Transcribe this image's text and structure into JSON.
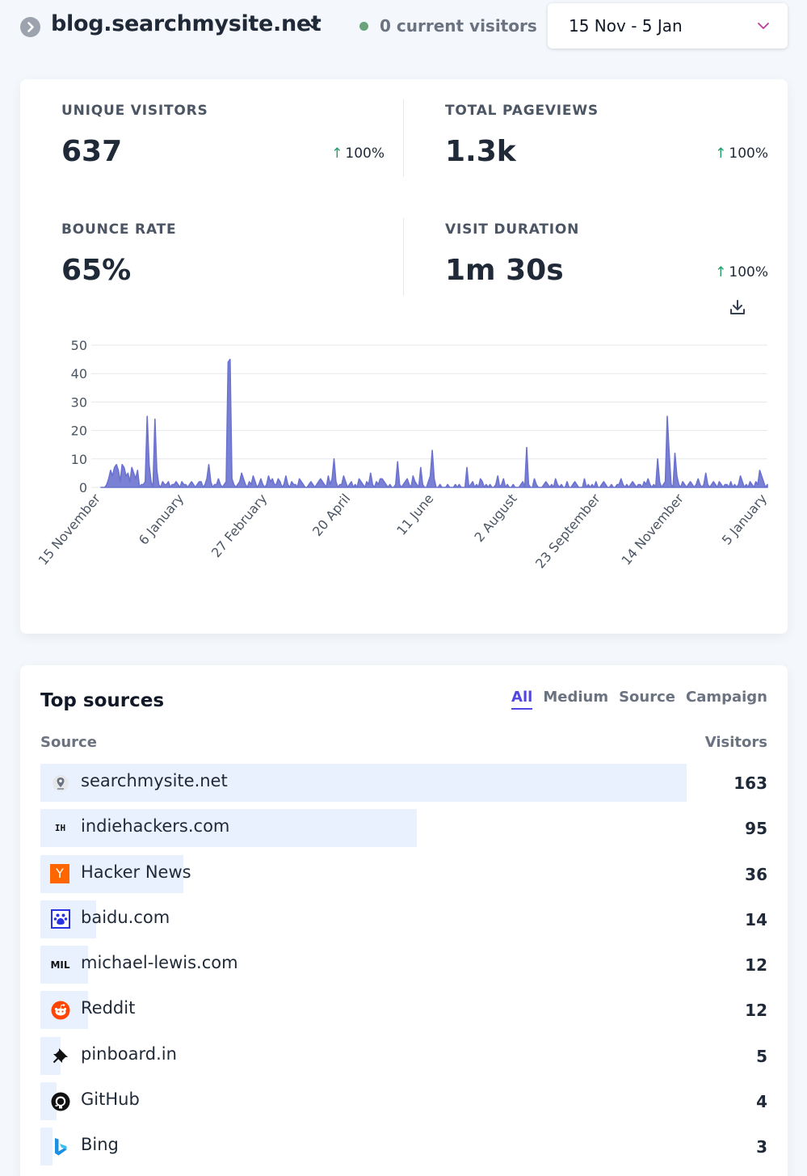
{
  "header": {
    "site_name": "blog.searchmysite.net",
    "current_visitors": "0 current visitors",
    "date_range": "15 Nov - 5 Jan"
  },
  "stats": [
    {
      "label": "UNIQUE VISITORS",
      "value": "637",
      "change": "100%"
    },
    {
      "label": "TOTAL PAGEVIEWS",
      "value": "1.3k",
      "change": "100%"
    },
    {
      "label": "BOUNCE RATE",
      "value": "65%",
      "change": ""
    },
    {
      "label": "VISIT DURATION",
      "value": "1m 30s",
      "change": "100%"
    }
  ],
  "chart_data": {
    "type": "area",
    "x_tick_labels": [
      "15 November",
      "6 January",
      "27 February",
      "20 April",
      "11 June",
      "2 August",
      "23 September",
      "14 November",
      "5 January"
    ],
    "y_ticks": [
      0,
      10,
      20,
      30,
      40,
      50
    ],
    "ylim": [
      0,
      50
    ],
    "grid": true,
    "color": "#6b72cf",
    "values": [
      0,
      0,
      0,
      1,
      3,
      6,
      4,
      7,
      8,
      6,
      2,
      8,
      7,
      4,
      5,
      2,
      7,
      5,
      3,
      6,
      0,
      1,
      1,
      2,
      25,
      8,
      2,
      0,
      24,
      6,
      1,
      0,
      2,
      1,
      1,
      2,
      0,
      1,
      1,
      2,
      1,
      0,
      2,
      1,
      1,
      0,
      1,
      2,
      1,
      0,
      1,
      2,
      2,
      0,
      1,
      3,
      8,
      2,
      0,
      1,
      1,
      3,
      1,
      0,
      1,
      2,
      44,
      45,
      3,
      1,
      0,
      1,
      2,
      5,
      3,
      1,
      0,
      2,
      1,
      4,
      2,
      0,
      1,
      3,
      1,
      0,
      1,
      4,
      2,
      3,
      1,
      1,
      3,
      2,
      0,
      1,
      4,
      1,
      0,
      2,
      1,
      1,
      0,
      3,
      2,
      1,
      0,
      0,
      1,
      2,
      1,
      0,
      1,
      2,
      3,
      2,
      1,
      0,
      4,
      1,
      3,
      10,
      2,
      0,
      1,
      1,
      4,
      2,
      0,
      1,
      2,
      0,
      1,
      0,
      3,
      2,
      1,
      0,
      2,
      1,
      5,
      1,
      0,
      2,
      1,
      3,
      3,
      2,
      1,
      0,
      1,
      0,
      0,
      1,
      9,
      1,
      0,
      1,
      2,
      3,
      1,
      0,
      4,
      2,
      1,
      0,
      7,
      1,
      0,
      0,
      2,
      4,
      13,
      3,
      0,
      0,
      1,
      0,
      0,
      0,
      1,
      0,
      0,
      0,
      1,
      0,
      1,
      0,
      0,
      0,
      7,
      0,
      1,
      2,
      0,
      1,
      0,
      3,
      2,
      0,
      1,
      0,
      1,
      0,
      0,
      1,
      4,
      0,
      1,
      3,
      0,
      1,
      0,
      0,
      1,
      0,
      0,
      0,
      1,
      2,
      0,
      14,
      1,
      0,
      0,
      3,
      1,
      0,
      0,
      0,
      1,
      2,
      1,
      0,
      1,
      0,
      3,
      1,
      0,
      1,
      0,
      0,
      2,
      0,
      0,
      1,
      2,
      1,
      0,
      0,
      0,
      3,
      0,
      1,
      0,
      1,
      0,
      2,
      0,
      0,
      1,
      2,
      1,
      0,
      0,
      1,
      0,
      0,
      1,
      1,
      3,
      1,
      0,
      1,
      0,
      1,
      2,
      1,
      0,
      1,
      1,
      0,
      2,
      1,
      3,
      1,
      0,
      1,
      0,
      10,
      2,
      0,
      1,
      2,
      25,
      12,
      1,
      0,
      12,
      4,
      1,
      0,
      2,
      1,
      0,
      1,
      2,
      1,
      0,
      1,
      3,
      1,
      0,
      1,
      5,
      1,
      0,
      1,
      2,
      1,
      0,
      2,
      1,
      0,
      1,
      1,
      0,
      2,
      0,
      1,
      0,
      1,
      4,
      2,
      0,
      1,
      0,
      2,
      1,
      0,
      2,
      1,
      6,
      4,
      2,
      0,
      1
    ]
  },
  "sources": {
    "title": "Top sources",
    "tabs": [
      "All",
      "Medium",
      "Source",
      "Campaign"
    ],
    "col_source": "Source",
    "col_visitors": "Visitors",
    "max": 163,
    "rows": [
      {
        "name": "searchmysite.net",
        "visitors": "163",
        "count": 163,
        "icon": "searchmysite-icon"
      },
      {
        "name": "indiehackers.com",
        "visitors": "95",
        "count": 95,
        "icon": "indiehackers-icon",
        "icon_text": "IH"
      },
      {
        "name": "Hacker News",
        "visitors": "36",
        "count": 36,
        "icon": "hacker-news-icon",
        "icon_text": "Y"
      },
      {
        "name": "baidu.com",
        "visitors": "14",
        "count": 14,
        "icon": "baidu-icon"
      },
      {
        "name": "michael-lewis.com",
        "visitors": "12",
        "count": 12,
        "icon": "michael-lewis-icon",
        "icon_text": "MIL"
      },
      {
        "name": "Reddit",
        "visitors": "12",
        "count": 12,
        "icon": "reddit-icon"
      },
      {
        "name": "pinboard.in",
        "visitors": "5",
        "count": 5,
        "icon": "pinboard-icon"
      },
      {
        "name": "GitHub",
        "visitors": "4",
        "count": 4,
        "icon": "github-icon"
      },
      {
        "name": "Bing",
        "visitors": "3",
        "count": 3,
        "icon": "bing-icon"
      }
    ]
  }
}
